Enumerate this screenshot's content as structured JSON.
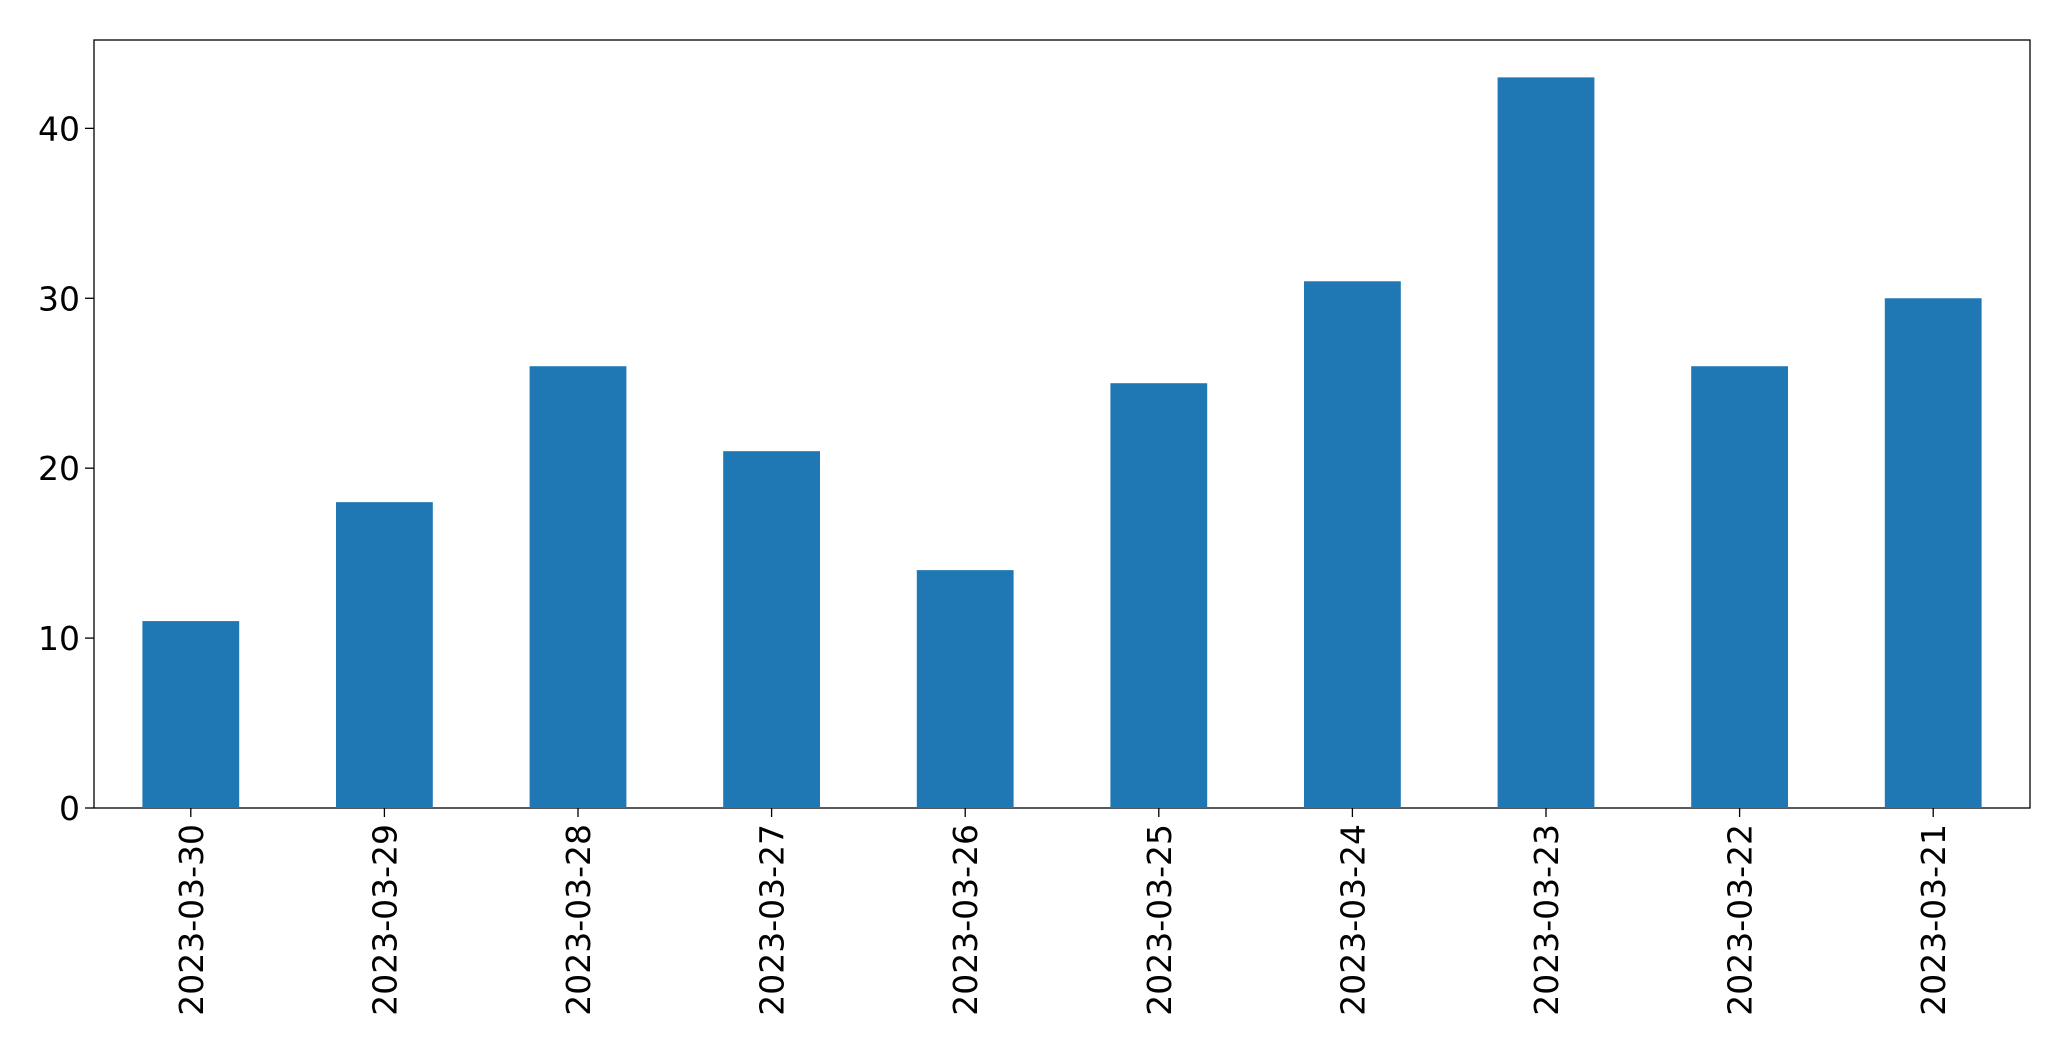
{
  "chart_data": {
    "type": "bar",
    "categories": [
      "2023-03-30",
      "2023-03-29",
      "2023-03-28",
      "2023-03-27",
      "2023-03-26",
      "2023-03-25",
      "2023-03-24",
      "2023-03-23",
      "2023-03-22",
      "2023-03-21"
    ],
    "values": [
      11,
      18,
      26,
      21,
      14,
      25,
      31,
      43,
      26,
      30
    ],
    "color": "#1f77b4",
    "ylim": [
      0,
      45.2
    ],
    "yticks": [
      0,
      10,
      20,
      30,
      40
    ],
    "grid": false
  }
}
